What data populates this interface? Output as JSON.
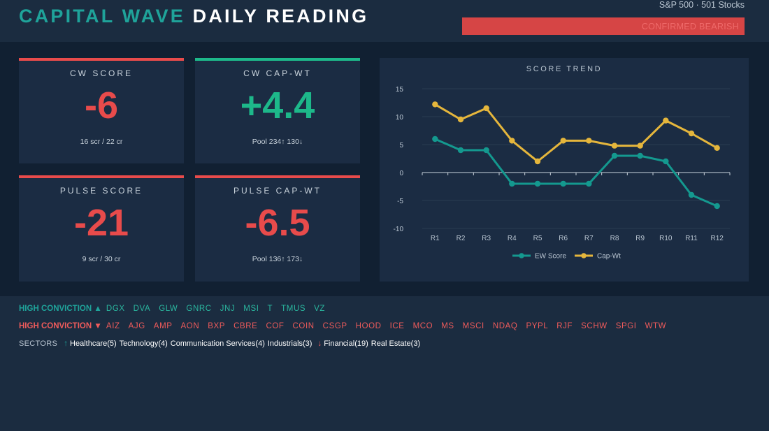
{
  "header": {
    "title_a": "CAPITAL WAVE",
    "title_b": "DAILY READING",
    "meta": "S&P 500  ·  501 Stocks",
    "signal": "CONFIRMED BEARISH"
  },
  "cards": [
    {
      "label": "CW SCORE",
      "value": "-6",
      "sub": "16 scr / 22 cr"
    },
    {
      "label": "CW CAP-WT",
      "value": "+4.4",
      "sub": "Pool 234↑ 130↓"
    },
    {
      "label": "PULSE SCORE",
      "value": "-21",
      "sub": "9 scr / 30 cr"
    },
    {
      "label": "PULSE CAP-WT",
      "value": "-6.5",
      "sub": "Pool 136↑ 173↓"
    }
  ],
  "chart_data": {
    "type": "line",
    "title": "SCORE TREND",
    "categories": [
      "R1",
      "R2",
      "R3",
      "R4",
      "R5",
      "R6",
      "R7",
      "R8",
      "R9",
      "R10",
      "R11",
      "R12"
    ],
    "series": [
      {
        "name": "EW Score",
        "color": "#14998f",
        "values": [
          6,
          4,
          4,
          -2,
          -2,
          -2,
          -2,
          3,
          3,
          2,
          -4,
          -6
        ]
      },
      {
        "name": "Cap-Wt",
        "color": "#e5b63c",
        "values": [
          12.2,
          9.5,
          11.5,
          5.7,
          2,
          5.7,
          5.7,
          4.8,
          4.8,
          9.3,
          7,
          4.4
        ]
      }
    ],
    "yticks": [
      "15",
      "10",
      "5",
      "0",
      "-5",
      "-10"
    ],
    "ylim": [
      -10,
      15
    ],
    "legend": "bottom",
    "grid": true
  },
  "high_up": {
    "label": "HIGH CONVICTION ▲",
    "tickers": [
      "DGX",
      "DVA",
      "GLW",
      "GNRC",
      "JNJ",
      "MSI",
      "T",
      "TMUS",
      "VZ"
    ]
  },
  "high_down": {
    "label": "HIGH CONVICTION ▼",
    "tickers": [
      "AIZ",
      "AJG",
      "AMP",
      "AON",
      "BXP",
      "CBRE",
      "COF",
      "COIN",
      "CSGP",
      "HOOD",
      "ICE",
      "MCO",
      "MS",
      "MSCI",
      "NDAQ",
      "PYPL",
      "RJF",
      "SCHW",
      "SPGI",
      "WTW"
    ]
  },
  "sectors": {
    "label": "SECTORS",
    "up_arrow": "↑",
    "down_arrow": "↓",
    "up": [
      "Healthcare(5)",
      "Technology(4)",
      "Communication Services(4)",
      "Industrials(3)"
    ],
    "down": [
      "Financial(19)",
      "Real Estate(3)"
    ]
  }
}
